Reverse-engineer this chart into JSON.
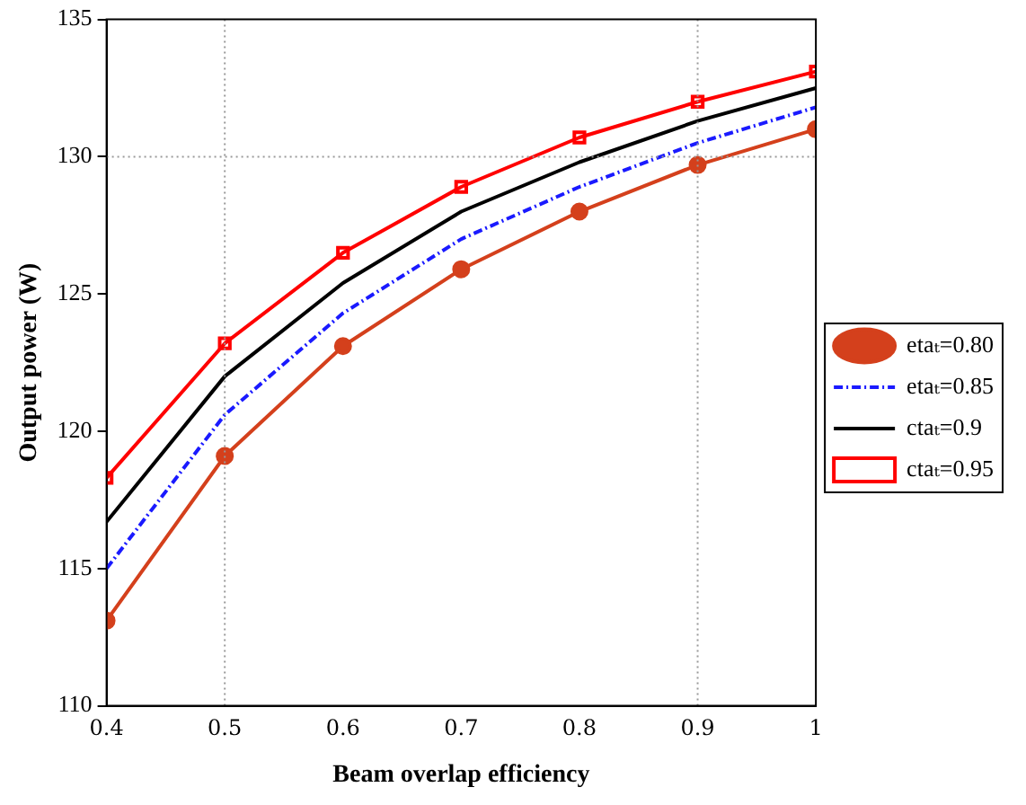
{
  "chart_data": {
    "type": "line",
    "xlabel": "Beam overlap efficiency",
    "ylabel": "Output power (W)",
    "x": [
      0.4,
      0.5,
      0.6,
      0.7,
      0.8,
      0.9,
      1
    ],
    "xlim": [
      0.4,
      1
    ],
    "xticks": [
      0.4,
      0.5,
      0.6,
      0.7,
      0.8,
      0.9,
      1
    ],
    "ylim": [
      110,
      135
    ],
    "yticks": [
      110,
      115,
      120,
      125,
      130,
      135
    ],
    "grid": false,
    "legend": "right",
    "ref_lines": [
      {
        "axis": "x",
        "value": 0.5,
        "color": "#999999",
        "line_style": "dotted"
      },
      {
        "axis": "x",
        "value": 0.9,
        "color": "#999999",
        "line_style": "dotted"
      },
      {
        "axis": "y",
        "value": 130,
        "color": "#999999",
        "line_style": "dotted"
      }
    ],
    "series": [
      {
        "name": "etaₜ=0.80",
        "color": "#d4401c",
        "marker": "circle",
        "line_style": "solid",
        "values": [
          113.1,
          119.1,
          123.1,
          125.9,
          128.0,
          129.7,
          131.0
        ]
      },
      {
        "name": "etaₜ=0.85",
        "color": "#1a1aff",
        "marker": "none",
        "line_style": "dashed",
        "values": [
          115.0,
          120.6,
          124.3,
          127.0,
          128.9,
          130.5,
          131.8
        ]
      },
      {
        "name": "ctaₜ=0.9",
        "color": "#000000",
        "marker": "none",
        "line_style": "solid",
        "values": [
          116.7,
          122.0,
          125.4,
          128.0,
          129.8,
          131.3,
          132.5
        ]
      },
      {
        "name": "ctaₜ=0.95",
        "color": "#ff0000",
        "marker": "square",
        "line_style": "solid",
        "values": [
          118.3,
          123.2,
          126.5,
          128.9,
          130.7,
          132.0,
          133.1
        ]
      }
    ]
  }
}
